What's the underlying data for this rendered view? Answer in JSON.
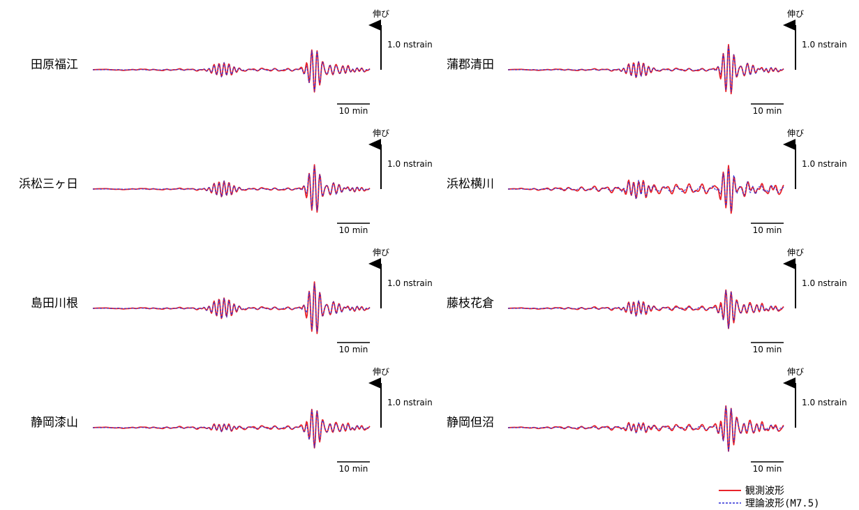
{
  "chart_data": {
    "type": "line",
    "series_legend": [
      {
        "name": "観測波形",
        "color": "#e8242b",
        "style": "solid"
      },
      {
        "name": "理論波形(M7.5)",
        "color": "#2b2bd6",
        "style": "dashed"
      }
    ],
    "extension_label": "伸び",
    "amplitude_scale_label": "1.0 nstrain",
    "amplitude_scale_value": 1.0,
    "time_scale_label": "10 min",
    "time_scale_value": 10,
    "panels": [
      {
        "station": "田原福江",
        "w1": 0.28,
        "w2": 0.85,
        "inv": -1,
        "obs_extra": 0.06
      },
      {
        "station": "浜松三ヶ日",
        "w1": 0.32,
        "w2": 0.92,
        "inv": 1,
        "obs_extra": 0.05
      },
      {
        "station": "島田川根",
        "w1": 0.42,
        "w2": 1.0,
        "inv": 1,
        "obs_extra": 0.06
      },
      {
        "station": "静岡漆山",
        "w1": 0.15,
        "w2": 0.78,
        "inv": -1,
        "obs_extra": 0.08
      },
      {
        "station": "蒲郡清田",
        "w1": 0.32,
        "w2": 0.95,
        "inv": 1,
        "obs_extra": 0.06
      },
      {
        "station": "浜松横川",
        "w1": 0.35,
        "w2": 0.85,
        "inv": 1,
        "obs_extra": 0.22
      },
      {
        "station": "藤枝花倉",
        "w1": 0.3,
        "w2": 0.78,
        "inv": -1,
        "obs_extra": 0.1
      },
      {
        "station": "静岡但沼",
        "w1": 0.18,
        "w2": 0.92,
        "inv": -1,
        "obs_extra": 0.14
      }
    ]
  }
}
